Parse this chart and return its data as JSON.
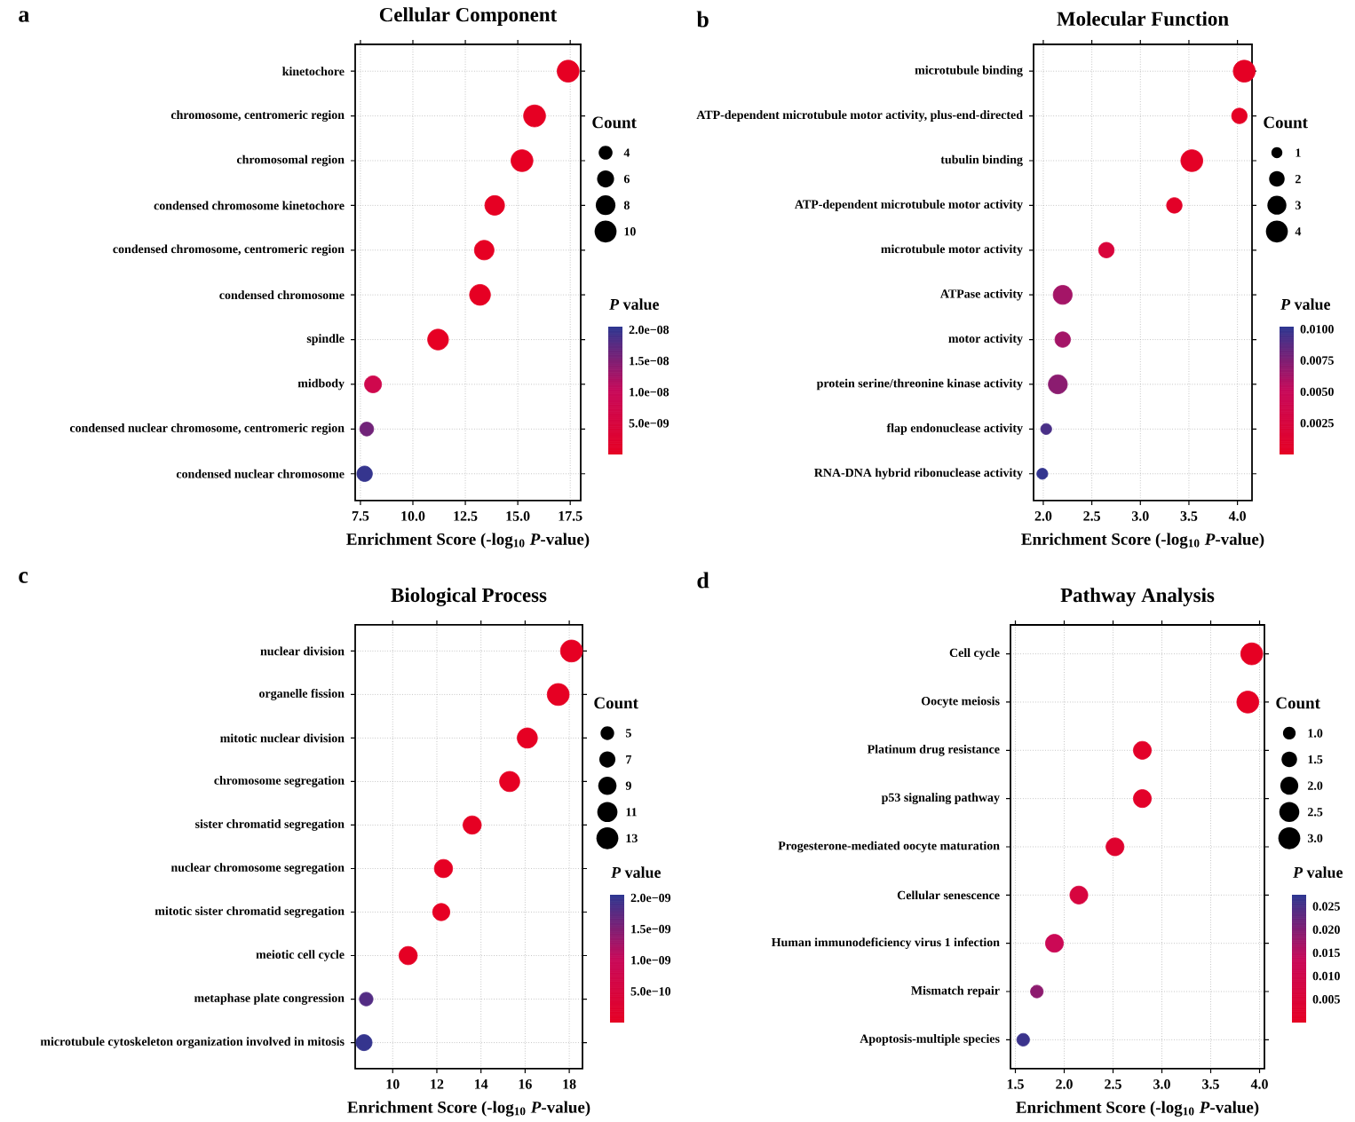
{
  "chart_data": [
    {
      "type": "bubble",
      "orientation": "horizontal",
      "title": "Cellular Component",
      "xlabel": "Enrichment Score (-log$_{10}$ *P*-value)",
      "annotations": [
        "a"
      ],
      "categories": [
        "kinetochore",
        "chromosome, centromeric region",
        "chromosomal region",
        "condensed chromosome kinetochore",
        "condensed chromosome, centromeric region",
        "condensed chromosome",
        "spindle",
        "midbody",
        "condensed nuclear chromosome, centromeric region",
        "condensed nuclear chromosome"
      ],
      "values": [
        17.4,
        15.8,
        15.2,
        13.9,
        13.4,
        13.2,
        11.2,
        8.1,
        7.8,
        7.7
      ],
      "sizes": [
        10,
        10,
        10,
        8,
        8,
        9,
        9,
        6,
        4,
        5
      ],
      "cvalues": [
        4e-18,
        1.6e-16,
        6.3e-16,
        1.3e-14,
        4e-14,
        6.3e-14,
        6.3e-12,
        7.9e-09,
        1.6e-08,
        2e-08
      ],
      "xlim": [
        7.25,
        18.0
      ],
      "xticks": [
        {
          "value": 7.5,
          "label": "7.5"
        },
        {
          "value": 10,
          "label": "10.0"
        },
        {
          "value": 12.5,
          "label": "12.5"
        },
        {
          "value": 15,
          "label": "15.0"
        },
        {
          "value": 17.5,
          "label": "17.5"
        }
      ],
      "legend_title": "Count",
      "size_legend": [
        4,
        6,
        8,
        10
      ],
      "clabel": "*P* value",
      "clim": [
        0,
        2.05e-08
      ],
      "cticks": [
        {
          "value": 5e-09,
          "label": "5.0e−09"
        },
        {
          "value": 1e-08,
          "label": "1.0e−08"
        },
        {
          "value": 1.5e-08,
          "label": "1.5e−08"
        },
        {
          "value": 2e-08,
          "label": "2.0e−08"
        }
      ],
      "grid": true
    },
    {
      "type": "bubble",
      "orientation": "horizontal",
      "title": "Molecular Function",
      "xlabel": "Enrichment Score (-log$_{10}$ *P*-value)",
      "annotations": [
        "b"
      ],
      "categories": [
        "microtubule binding",
        "ATP-dependent microtubule motor activity, plus-end-directed",
        "tubulin binding",
        "ATP-dependent microtubule motor activity",
        "microtubule motor activity",
        "ATPase activity",
        "motor activity",
        "protein serine/threonine kinase activity",
        "flap endonuclease activity",
        "RNA-DNA hybrid ribonuclease activity"
      ],
      "values": [
        4.07,
        4.02,
        3.53,
        3.35,
        2.65,
        2.2,
        2.2,
        2.15,
        2.03,
        1.99
      ],
      "sizes": [
        4,
        2,
        4,
        2,
        2,
        3,
        2,
        3,
        1,
        1
      ],
      "cvalues": [
        8.5e-05,
        9.5e-05,
        0.0003,
        0.00045,
        0.0022,
        0.0063,
        0.0063,
        0.0071,
        0.0093,
        0.01
      ],
      "xlim": [
        1.9,
        4.15
      ],
      "xticks": [
        {
          "value": 2,
          "label": "2.0"
        },
        {
          "value": 2.5,
          "label": "2.5"
        },
        {
          "value": 3,
          "label": "3.0"
        },
        {
          "value": 3.5,
          "label": "3.5"
        },
        {
          "value": 4,
          "label": "4.0"
        }
      ],
      "legend_title": "Count",
      "size_legend": [
        1,
        2,
        3,
        4
      ],
      "clabel": "*P* value",
      "clim": [
        0,
        0.0102
      ],
      "cticks": [
        {
          "value": 0.0025,
          "label": "0.0025"
        },
        {
          "value": 0.005,
          "label": "0.0050"
        },
        {
          "value": 0.0075,
          "label": "0.0075"
        },
        {
          "value": 0.01,
          "label": "0.0100"
        }
      ],
      "grid": true
    },
    {
      "type": "bubble",
      "orientation": "horizontal",
      "title": "Biological Process",
      "xlabel": "Enrichment Score (-log$_{10}$ *P*-value)",
      "annotations": [
        "c"
      ],
      "categories": [
        "nuclear division",
        "organelle fission",
        "mitotic nuclear division",
        "chromosome segregation",
        "sister chromatid segregation",
        "nuclear chromosome segregation",
        "mitotic sister chromatid segregation",
        "meiotic cell cycle",
        "metaphase plate congression",
        "microtubule cytoskeleton organization involved in mitosis"
      ],
      "values": [
        18.1,
        17.5,
        16.1,
        15.3,
        13.6,
        12.3,
        12.2,
        10.7,
        8.8,
        8.7
      ],
      "sizes": [
        13,
        13,
        11,
        11,
        9,
        9,
        8,
        9,
        5,
        7
      ],
      "cvalues": [
        7.9e-19,
        3.2e-18,
        8.9e-17,
        5e-16,
        2.5e-14,
        5.6e-13,
        6.3e-13,
        2e-11,
        1.8e-09,
        2e-09
      ],
      "xlim": [
        8.3,
        18.6
      ],
      "xticks": [
        10,
        12,
        14,
        16,
        18
      ],
      "legend_title": "Count",
      "size_legend": [
        5,
        7,
        9,
        11,
        13
      ],
      "clabel": "*P* value",
      "clim": [
        0,
        2.05e-09
      ],
      "cticks": [
        {
          "value": 5e-10,
          "label": "5.0e−10"
        },
        {
          "value": 1e-09,
          "label": "1.0e−09"
        },
        {
          "value": 1.5e-09,
          "label": "1.5e−09"
        },
        {
          "value": 2e-09,
          "label": "2.0e−09"
        }
      ],
      "grid": true
    },
    {
      "type": "bubble",
      "orientation": "horizontal",
      "title": "Pathway Analysis",
      "xlabel": "Enrichment Score (-log$_{10}$ *P*-value)",
      "annotations": [
        "d"
      ],
      "categories": [
        "Cell cycle",
        "Oocyte meiosis",
        "Platinum drug resistance",
        "p53 signaling pathway",
        "Progesterone-mediated oocyte maturation",
        "Cellular senescence",
        "Human immunodeficiency virus 1 infection",
        "Mismatch repair",
        "Apoptosis-multiple species"
      ],
      "values": [
        3.92,
        3.88,
        2.8,
        2.8,
        2.52,
        2.15,
        1.9,
        1.72,
        1.58
      ],
      "sizes": [
        3,
        3,
        2,
        2,
        2,
        2,
        2,
        1,
        1
      ],
      "cvalues": [
        0.00012,
        0.00013,
        0.0016,
        0.0016,
        0.003,
        0.0071,
        0.0126,
        0.019,
        0.0263
      ],
      "xlim": [
        1.45,
        4.05
      ],
      "xticks": [
        {
          "value": 1.5,
          "label": "1.5"
        },
        {
          "value": 2,
          "label": "2.0"
        },
        {
          "value": 2.5,
          "label": "2.5"
        },
        {
          "value": 3,
          "label": "3.0"
        },
        {
          "value": 3.5,
          "label": "3.5"
        },
        {
          "value": 4,
          "label": "4.0"
        }
      ],
      "legend_title": "Count",
      "size_legend": [
        {
          "value": 1,
          "label": "1.0"
        },
        {
          "value": 1.5,
          "label": "1.5"
        },
        {
          "value": 2,
          "label": "2.0"
        },
        {
          "value": 2.5,
          "label": "2.5"
        },
        {
          "value": 3,
          "label": "3.0"
        }
      ],
      "clabel": "*P* value",
      "clim": [
        0,
        0.0275
      ],
      "cticks": [
        {
          "value": 0.005,
          "label": "0.005"
        },
        {
          "value": 0.01,
          "label": "0.010"
        },
        {
          "value": 0.015,
          "label": "0.015"
        },
        {
          "value": 0.02,
          "label": "0.020"
        },
        {
          "value": 0.025,
          "label": "0.025"
        }
      ],
      "grid": true
    }
  ]
}
